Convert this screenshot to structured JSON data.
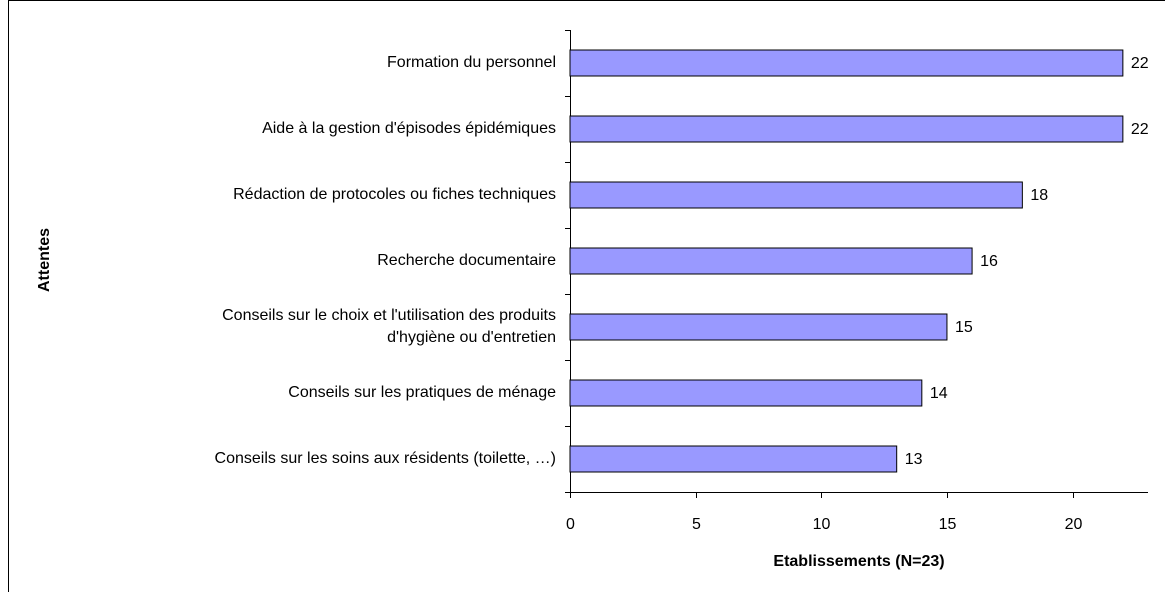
{
  "chart_data": {
    "type": "bar",
    "orientation": "horizontal",
    "x_label": "Etablissements (N=23)",
    "y_label": "Attentes",
    "categories": [
      "Formation du personnel",
      "Aide à la gestion d'épisodes épidémiques",
      "Rédaction de protocoles ou fiches techniques",
      "Recherche documentaire",
      "Conseils sur le choix et l'utilisation des produits\nd'hygiène ou d'entretien",
      "Conseils sur les pratiques de ménage",
      "Conseils sur les soins aux résidents (toilette, …)"
    ],
    "values": [
      22,
      22,
      18,
      16,
      15,
      14,
      13
    ],
    "color": "#9999ff",
    "xlim": [
      0,
      23
    ],
    "xticks": [
      0,
      5,
      10,
      15,
      20
    ],
    "grid": false
  }
}
